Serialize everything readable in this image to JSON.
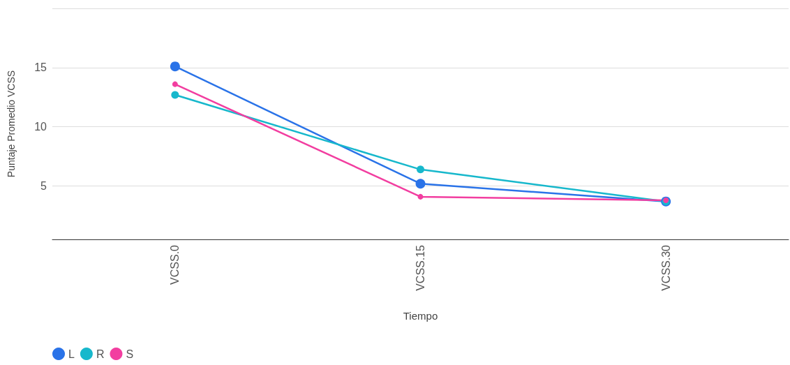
{
  "chart_data": {
    "type": "line",
    "xlabel": "Tiempo",
    "ylabel": "Puntaje Promedio VCSS",
    "categories": [
      "VCSS.0",
      "VCSS.15",
      "VCSS.30"
    ],
    "series": [
      {
        "name": "L",
        "color": "#2a73e8",
        "values": [
          15.1,
          5.2,
          3.7
        ]
      },
      {
        "name": "R",
        "color": "#17b8cc",
        "values": [
          12.7,
          6.4,
          3.7
        ]
      },
      {
        "name": "S",
        "color": "#f23ea0",
        "values": [
          13.6,
          4.1,
          3.8
        ]
      }
    ],
    "ylim": [
      0.5,
      20
    ],
    "yticks": [
      5,
      10,
      15,
      {
        "value": 20,
        "label": null
      }
    ],
    "grid": "y",
    "legend": "bottom left",
    "marker": "circle",
    "line_style": "solid"
  }
}
